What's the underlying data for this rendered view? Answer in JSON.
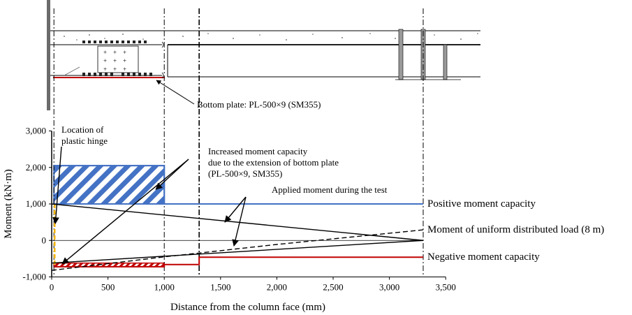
{
  "chart_data": {
    "type": "line",
    "xlabel": "Distance from the column face (mm)",
    "ylabel": "Moment (kN·m)",
    "xlim": [
      0,
      3500
    ],
    "ylim": [
      -1000,
      3000
    ],
    "x_ticks": [
      "0",
      "500",
      "1,000",
      "1,500",
      "2,000",
      "2,500",
      "3,000",
      "3,500"
    ],
    "x_tick_values": [
      0,
      500,
      1000,
      1500,
      2000,
      2500,
      3000,
      3500
    ],
    "y_ticks": [
      "3,000",
      "2,000",
      "1,000",
      "0",
      "-1,000"
    ],
    "y_tick_values": [
      3000,
      2000,
      1000,
      0,
      -1000
    ],
    "series": [
      {
        "name": "Positive moment capacity",
        "color": "#4472c4",
        "x": [
          20,
          1000,
          1000,
          3300
        ],
        "y": [
          2050,
          2050,
          1000,
          1000
        ]
      },
      {
        "name": "Negative moment capacity",
        "color": "#c00000",
        "x": [
          20,
          1000,
          1000,
          1310,
          1310,
          3300
        ],
        "y": [
          -720,
          -720,
          -660,
          -660,
          -460,
          -460
        ]
      },
      {
        "name": "Applied moment during the test",
        "color": "#000000",
        "x": [
          0,
          3300
        ],
        "y": [
          1000,
          0
        ]
      },
      {
        "name": "Applied moment during the test (negative)",
        "color": "#000000",
        "x": [
          0,
          3300
        ],
        "y": [
          -620,
          0
        ]
      },
      {
        "name": "Moment of uniform distributed load (8 m)",
        "color": "#000000",
        "dashed": true,
        "x": [
          0,
          1000,
          2000,
          3300
        ],
        "y": [
          -820,
          -450,
          -110,
          290
        ]
      }
    ],
    "hatched_regions": [
      {
        "name": "Increased positive moment capacity",
        "color": "#4472c4",
        "x": [
          20,
          1000
        ],
        "y": [
          1000,
          2050
        ]
      },
      {
        "name": "Increased negative moment capacity",
        "color": "#c00000",
        "x": [
          20,
          1000
        ],
        "y": [
          -720,
          -620
        ]
      }
    ],
    "vertical_lines_x": [
      20,
      1000,
      1310,
      3300
    ],
    "annotations": {
      "plastic_hinge": [
        "Location of",
        "plastic hinge"
      ],
      "increased_capacity": [
        "Increased moment capacity",
        "due to the extension of bottom plate",
        "(PL-500×9, SM355)"
      ],
      "applied_moment": "Applied moment during the test",
      "positive_capacity": "Positive moment capacity",
      "uniform_load": "Moment of uniform distributed load (8 m)",
      "negative_capacity": "Negative moment capacity"
    }
  },
  "beam_drawing": {
    "bottom_plate_label": "Bottom plate: PL-500×9 (SM355)",
    "bolt_symbols": [
      "+",
      "+",
      "+",
      "+",
      "+",
      "+",
      "+",
      "+",
      "+"
    ]
  },
  "colors": {
    "positive": "#4472c4",
    "negative": "#c00000",
    "hinge": "#f4b400",
    "line": "#000000"
  }
}
